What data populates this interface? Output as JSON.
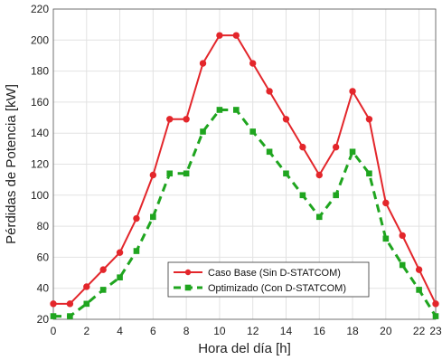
{
  "chart_data": {
    "type": "line",
    "xlabel": "Hora del día [h]",
    "ylabel": "Pérdidas de Potencia [kW]",
    "xlim": [
      0,
      23
    ],
    "ylim": [
      20,
      220
    ],
    "xticks": [
      0,
      2,
      4,
      6,
      8,
      10,
      12,
      14,
      16,
      18,
      20,
      22,
      23
    ],
    "yticks": [
      20,
      40,
      60,
      80,
      100,
      120,
      140,
      160,
      180,
      200,
      220
    ],
    "grid": true,
    "legend_position": "bottom-center",
    "x": [
      0,
      1,
      2,
      3,
      4,
      5,
      6,
      7,
      8,
      9,
      10,
      11,
      12,
      13,
      14,
      15,
      16,
      17,
      18,
      19,
      20,
      21,
      22,
      23
    ],
    "series": [
      {
        "name": "Caso Base (Sin D-STATCOM)",
        "color": "#e3262b",
        "line_style": "solid",
        "marker": "circle",
        "values": [
          30,
          30,
          41,
          52,
          63,
          85,
          113,
          149,
          149,
          185,
          203,
          203,
          185,
          167,
          149,
          131,
          113,
          131,
          167,
          149,
          95,
          74,
          52,
          30
        ]
      },
      {
        "name": "Optimizado (Con D-STATCOM)",
        "color": "#1fa51f",
        "line_style": "dashed",
        "marker": "square",
        "values": [
          22,
          22,
          30,
          39,
          47,
          64,
          86,
          114,
          114,
          141,
          155,
          155,
          141,
          128,
          114,
          100,
          86,
          100,
          128,
          114,
          72,
          55,
          39,
          22
        ]
      }
    ]
  }
}
